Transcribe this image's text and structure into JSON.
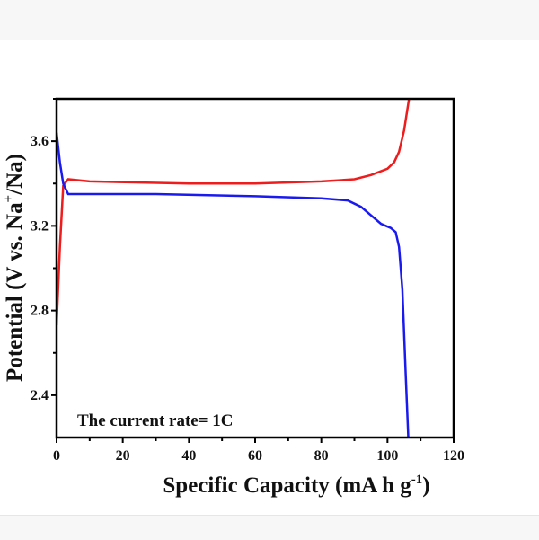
{
  "chart_data": {
    "type": "line",
    "title": "",
    "xlabel": "Specific Capacity (mA h g",
    "xlabel_sup": "-1",
    "xlabel_end": ")",
    "ylabel": "Potential (V vs. Na",
    "ylabel_sup": "+",
    "ylabel_end": "/Na)",
    "xlim": [
      0,
      120
    ],
    "ylim": [
      2.2,
      3.8
    ],
    "xticks": [
      0,
      20,
      40,
      60,
      80,
      100,
      120
    ],
    "yticks": [
      2.4,
      2.8,
      3.2,
      3.6
    ],
    "grid": false,
    "annotation": "The current rate= 1C",
    "series": [
      {
        "color": "#ee1c1c",
        "x": [
          0,
          1,
          2,
          3.5,
          10,
          40,
          60,
          80,
          90,
          95,
          100,
          102,
          103.5,
          105,
          106.5
        ],
        "y": [
          2.73,
          3.1,
          3.39,
          3.42,
          3.41,
          3.4,
          3.4,
          3.41,
          3.42,
          3.44,
          3.47,
          3.5,
          3.55,
          3.65,
          3.8
        ]
      },
      {
        "color": "#1a1aee",
        "x": [
          0,
          1,
          2,
          3.5,
          30,
          60,
          80,
          88,
          92,
          95,
          98,
          101,
          102.5,
          103.5,
          104.5,
          105.5,
          106.3
        ],
        "y": [
          3.64,
          3.5,
          3.4,
          3.35,
          3.35,
          3.34,
          3.33,
          3.32,
          3.29,
          3.25,
          3.21,
          3.19,
          3.17,
          3.1,
          2.9,
          2.5,
          2.2
        ]
      }
    ]
  }
}
